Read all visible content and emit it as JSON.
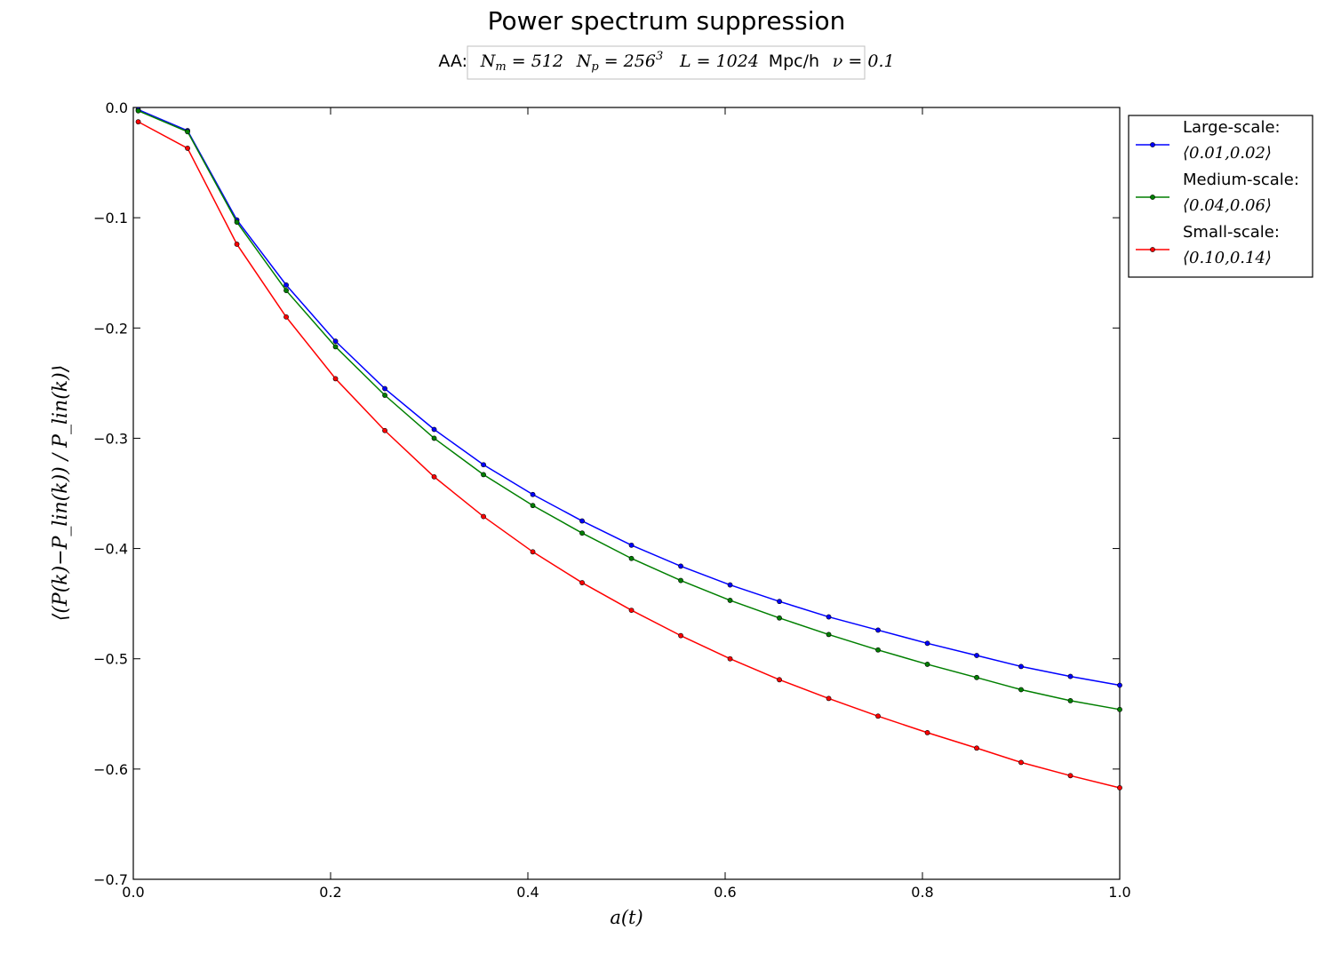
{
  "chart_data": {
    "type": "line",
    "title": "Power spectrum suppression",
    "subtitle": {
      "prefix": "AA:",
      "Nm_value": "512",
      "Np_value": "256",
      "Np_exp": "3",
      "L_value": "1024",
      "L_unit": "Mpc/h",
      "nu_value": "0.1"
    },
    "xlabel": "a(t)",
    "ylabel": "⟨(P(k)−P_lin(k)) / P_lin(k)⟩",
    "xlim": [
      0.0,
      1.0
    ],
    "ylim": [
      -0.7,
      0.0
    ],
    "xticks": [
      "0.0",
      "0.2",
      "0.4",
      "0.6",
      "0.8",
      "1.0"
    ],
    "yticks": [
      "0.0",
      "−0.1",
      "−0.2",
      "−0.3",
      "−0.4",
      "−0.5",
      "−0.6",
      "−0.7"
    ],
    "grid": false,
    "legend_position": "outside-right-top",
    "x": [
      0.005,
      0.055,
      0.105,
      0.155,
      0.205,
      0.255,
      0.305,
      0.355,
      0.405,
      0.455,
      0.505,
      0.555,
      0.605,
      0.655,
      0.705,
      0.755,
      0.805,
      0.855,
      0.9,
      0.95,
      1.0
    ],
    "series": [
      {
        "name": "Large-scale:",
        "range": "⟨0.01,0.02⟩",
        "color": "#0000ff",
        "values": [
          -0.002,
          -0.021,
          -0.102,
          -0.161,
          -0.212,
          -0.255,
          -0.292,
          -0.324,
          -0.351,
          -0.375,
          -0.397,
          -0.416,
          -0.433,
          -0.448,
          -0.462,
          -0.474,
          -0.486,
          -0.497,
          -0.507,
          -0.516,
          -0.524
        ]
      },
      {
        "name": "Medium-scale:",
        "range": "⟨0.04,0.06⟩",
        "color": "#007f00",
        "values": [
          -0.003,
          -0.022,
          -0.104,
          -0.166,
          -0.217,
          -0.261,
          -0.3,
          -0.333,
          -0.361,
          -0.386,
          -0.409,
          -0.429,
          -0.447,
          -0.463,
          -0.478,
          -0.492,
          -0.505,
          -0.517,
          -0.528,
          -0.538,
          -0.546
        ]
      },
      {
        "name": "Small-scale:",
        "range": "⟨0.10,0.14⟩",
        "color": "#ff0000",
        "values": [
          -0.013,
          -0.037,
          -0.124,
          -0.19,
          -0.246,
          -0.293,
          -0.335,
          -0.371,
          -0.403,
          -0.431,
          -0.456,
          -0.479,
          -0.5,
          -0.519,
          -0.536,
          -0.552,
          -0.567,
          -0.581,
          -0.594,
          -0.606,
          -0.617
        ]
      }
    ]
  }
}
